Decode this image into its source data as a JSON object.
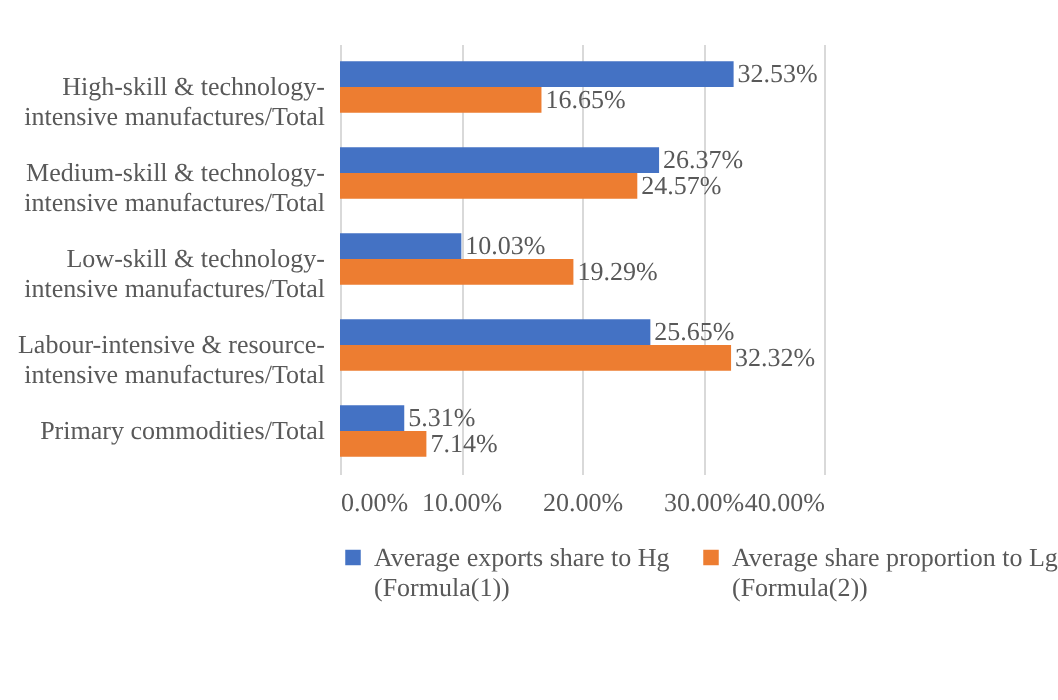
{
  "chart_data": {
    "type": "bar",
    "orientation": "horizontal",
    "categories": [
      "High-skill & technology-\nintensive manufactures/Total",
      "Medium-skill & technology-\nintensive manufactures/Total",
      "Low-skill & technology-\nintensive manufactures/Total",
      "Labour-intensive & resource-\nintensive manufactures/Total",
      "Primary commodities/Total"
    ],
    "series": [
      {
        "name": "Average exports share to Hg\n(Formula(1))",
        "color": "#4472c4",
        "values": [
          32.53,
          26.37,
          10.03,
          25.65,
          5.31
        ],
        "value_labels": [
          "32.53%",
          "26.37%",
          "10.03%",
          "25.65%",
          "5.31%"
        ]
      },
      {
        "name": "Average share proportion to Lg\n(Formula(2))",
        "color": "#ed7d31",
        "values": [
          16.65,
          24.57,
          19.29,
          32.32,
          7.14
        ],
        "value_labels": [
          "16.65%",
          "24.57%",
          "19.29%",
          "32.32%",
          "7.14%"
        ]
      }
    ],
    "xlim": [
      0,
      40
    ],
    "xticks": [
      {
        "value": 0,
        "label": "0.00%"
      },
      {
        "value": 10,
        "label": "10.00%"
      },
      {
        "value": 20,
        "label": "20.00%"
      },
      {
        "value": 30,
        "label": "30.00%"
      },
      {
        "value": 40,
        "label": "40.00%"
      }
    ],
    "grid": "x",
    "legend": "bottom"
  }
}
